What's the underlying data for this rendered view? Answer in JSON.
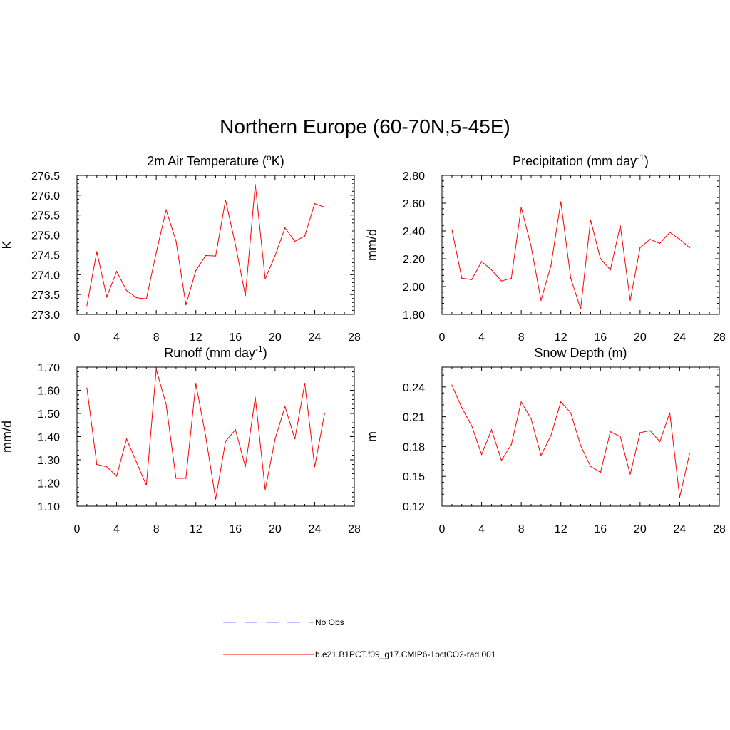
{
  "title": "Northern Europe (60-70N,5-45E)",
  "colors": {
    "model": "#ff0000",
    "obs": "#9999ff",
    "axis": "#000000"
  },
  "legend": {
    "obs_label": "No Obs",
    "model_label": "b.e21.B1PCT.f09_g17.CMIP6-1pctCO2-rad.001"
  },
  "chart_data": [
    {
      "type": "line",
      "title": "2m Air Temperature (",
      "title_sup": "o",
      "title_tail": "K)",
      "ylabel": "K",
      "xlim": [
        0,
        28
      ],
      "ylim": [
        273.0,
        276.5
      ],
      "xticks": [
        "0",
        "4",
        "8",
        "12",
        "16",
        "20",
        "24",
        "28"
      ],
      "yticks": [
        "273.0",
        "273.5",
        "274.0",
        "274.5",
        "275.0",
        "275.5",
        "276.0",
        "276.5"
      ],
      "series": [
        {
          "x": [
            1,
            2,
            3,
            4,
            5,
            6,
            7,
            8,
            9,
            10,
            11,
            12,
            13,
            14,
            15,
            16,
            17,
            18,
            19,
            20,
            21,
            22,
            23,
            24,
            25
          ],
          "values": [
            273.22,
            274.58,
            273.44,
            274.08,
            273.6,
            273.42,
            273.39,
            274.55,
            275.63,
            274.85,
            273.24,
            274.1,
            274.48,
            274.47,
            275.88,
            274.75,
            273.47,
            276.27,
            273.89,
            274.48,
            275.18,
            274.84,
            274.97,
            275.79,
            275.7
          ]
        }
      ]
    },
    {
      "type": "line",
      "title": "Precipitation (mm day",
      "title_sup": "-1",
      "title_tail": ")",
      "ylabel": "mm/d",
      "xlim": [
        0,
        28
      ],
      "ylim": [
        1.8,
        2.8
      ],
      "xticks": [
        "0",
        "4",
        "8",
        "12",
        "16",
        "20",
        "24",
        "28"
      ],
      "yticks": [
        "1.80",
        "2.00",
        "2.20",
        "2.40",
        "2.60",
        "2.80"
      ],
      "series": [
        {
          "x": [
            1,
            2,
            3,
            4,
            5,
            6,
            7,
            8,
            9,
            10,
            11,
            12,
            13,
            14,
            15,
            16,
            17,
            18,
            19,
            20,
            21,
            22,
            23,
            24,
            25
          ],
          "values": [
            2.41,
            2.06,
            2.05,
            2.18,
            2.12,
            2.04,
            2.06,
            2.57,
            2.29,
            1.9,
            2.15,
            2.61,
            2.06,
            1.84,
            2.48,
            2.2,
            2.12,
            2.44,
            1.9,
            2.28,
            2.34,
            2.31,
            2.39,
            2.34,
            2.28
          ]
        }
      ]
    },
    {
      "type": "line",
      "title": "Runoff (mm day",
      "title_sup": "-1",
      "title_tail": ")",
      "ylabel": "mm/d",
      "xlim": [
        0,
        28
      ],
      "ylim": [
        1.1,
        1.7
      ],
      "xticks": [
        "0",
        "4",
        "8",
        "12",
        "16",
        "20",
        "24",
        "28"
      ],
      "yticks": [
        "1.10",
        "1.20",
        "1.30",
        "1.40",
        "1.50",
        "1.60",
        "1.70"
      ],
      "series": [
        {
          "x": [
            1,
            2,
            3,
            4,
            5,
            6,
            7,
            8,
            9,
            10,
            11,
            12,
            13,
            14,
            15,
            16,
            17,
            18,
            19,
            20,
            21,
            22,
            23,
            24,
            25
          ],
          "values": [
            1.61,
            1.28,
            1.27,
            1.23,
            1.39,
            1.29,
            1.19,
            1.69,
            1.54,
            1.22,
            1.22,
            1.63,
            1.4,
            1.13,
            1.38,
            1.43,
            1.27,
            1.57,
            1.17,
            1.39,
            1.53,
            1.39,
            1.63,
            1.27,
            1.5
          ]
        }
      ]
    },
    {
      "type": "line",
      "title": "Snow Depth (m)",
      "title_sup": "",
      "title_tail": "",
      "ylabel": "m",
      "xlim": [
        0,
        28
      ],
      "ylim": [
        0.12,
        0.26
      ],
      "xticks": [
        "0",
        "4",
        "8",
        "12",
        "16",
        "20",
        "24",
        "28"
      ],
      "yticks": [
        "0.12",
        "0.15",
        "0.18",
        "0.21",
        "0.24"
      ],
      "series": [
        {
          "x": [
            1,
            2,
            3,
            4,
            5,
            6,
            7,
            8,
            9,
            10,
            11,
            12,
            13,
            14,
            15,
            16,
            17,
            18,
            19,
            20,
            21,
            22,
            23,
            24,
            25
          ],
          "values": [
            0.242,
            0.219,
            0.201,
            0.172,
            0.197,
            0.166,
            0.182,
            0.225,
            0.208,
            0.171,
            0.191,
            0.225,
            0.214,
            0.181,
            0.16,
            0.154,
            0.195,
            0.19,
            0.152,
            0.194,
            0.196,
            0.185,
            0.214,
            0.129,
            0.173
          ]
        }
      ]
    }
  ]
}
